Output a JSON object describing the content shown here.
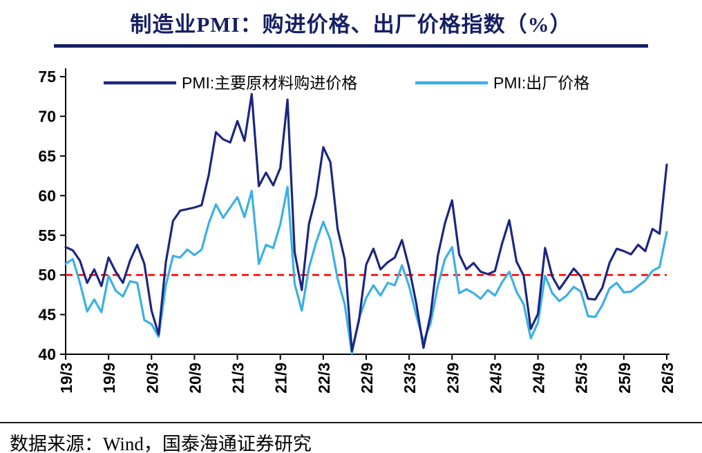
{
  "title": "制造业PMI：购进价格、出厂价格指数（%）",
  "footer": "数据来源：Wind，国泰海通证券研究",
  "colors": {
    "title_navy": "#141f63",
    "purchase_line": "#1c2680",
    "output_line": "#3ab0e4",
    "reference_red": "#fe0000",
    "axis_black": "#000000"
  },
  "chart_data": {
    "type": "line",
    "title": "制造业PMI：购进价格、出厂价格指数（%）",
    "x_start": "2019/3",
    "x_interval": "monthly",
    "x_tick_every": 6,
    "x_tick_labels": [
      "19/3",
      "19/9",
      "20/3",
      "20/9",
      "21/3",
      "21/9",
      "22/3",
      "22/9",
      "23/3",
      "23/9",
      "24/3",
      "24/9",
      "25/3",
      "25/9",
      "26/3"
    ],
    "ylim": [
      40,
      75
    ],
    "ytick_step": 5,
    "grid": false,
    "legend_position": "top",
    "reference_line": {
      "value": 50,
      "color": "#fe0000",
      "style": "dashed"
    },
    "series": [
      {
        "name": "PMI:主要原材料购进价格",
        "color": "#1c2680",
        "values": [
          53.5,
          53.1,
          51.8,
          49.0,
          50.7,
          48.6,
          52.2,
          50.4,
          49.0,
          51.8,
          53.8,
          51.4,
          45.5,
          42.5,
          51.6,
          56.8,
          58.1,
          58.3,
          58.5,
          58.8,
          62.6,
          68.0,
          67.1,
          66.7,
          69.4,
          66.9,
          72.8,
          61.2,
          62.9,
          61.3,
          63.5,
          72.1,
          52.9,
          48.1,
          56.4,
          60.0,
          66.1,
          64.2,
          55.8,
          52.0,
          40.4,
          44.3,
          51.3,
          53.3,
          50.7,
          51.6,
          52.2,
          54.4,
          50.9,
          46.4,
          40.8,
          45.0,
          52.4,
          56.5,
          59.4,
          52.6,
          50.7,
          51.5,
          50.4,
          50.1,
          50.5,
          54.0,
          56.9,
          51.7,
          49.9,
          43.2,
          45.1,
          53.4,
          49.8,
          48.2,
          49.5,
          50.8,
          49.8,
          47.0,
          46.9,
          48.4,
          51.5,
          53.3,
          53.0,
          52.6,
          53.8,
          53.0,
          55.8,
          55.2,
          63.9
        ]
      },
      {
        "name": "PMI:出厂价格",
        "color": "#3ab0e4",
        "values": [
          51.4,
          52.0,
          49.0,
          45.4,
          46.9,
          45.3,
          49.9,
          48.0,
          47.3,
          49.2,
          49.0,
          44.3,
          43.8,
          42.2,
          48.7,
          52.4,
          52.2,
          53.2,
          52.5,
          53.2,
          56.5,
          58.9,
          57.2,
          58.5,
          59.8,
          57.3,
          60.6,
          51.4,
          53.8,
          53.4,
          56.4,
          61.1,
          48.9,
          45.5,
          50.9,
          54.1,
          56.7,
          54.4,
          49.5,
          46.3,
          40.1,
          44.5,
          47.1,
          48.7,
          47.4,
          49.0,
          48.7,
          51.2,
          48.6,
          44.9,
          41.6,
          43.9,
          48.6,
          52.0,
          53.5,
          47.7,
          48.2,
          47.7,
          47.0,
          48.1,
          47.4,
          49.1,
          50.4,
          47.9,
          46.3,
          42.0,
          44.0,
          49.9,
          47.7,
          46.7,
          47.4,
          48.5,
          47.9,
          44.8,
          44.7,
          46.2,
          48.3,
          49.0,
          47.8,
          47.9,
          48.6,
          49.3,
          50.5,
          51.0,
          55.4
        ]
      }
    ]
  }
}
